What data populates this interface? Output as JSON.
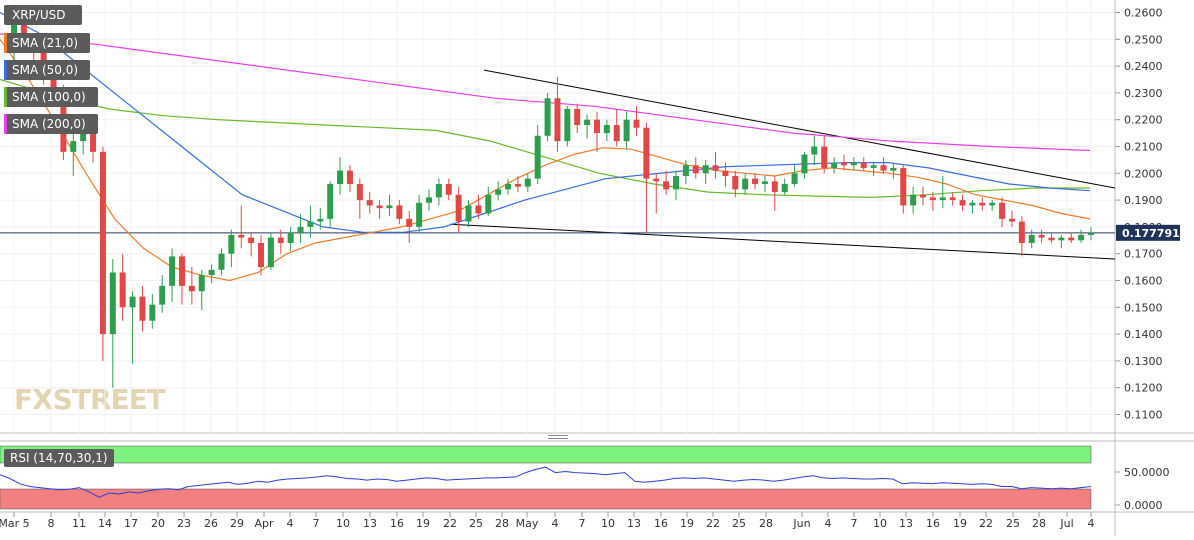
{
  "chart_data": {
    "type": "candlestick",
    "symbol": "XRP/USD",
    "indicators": [
      {
        "name": "SMA (21,0)",
        "color": "#ef7b2b"
      },
      {
        "name": "SMA (50,0)",
        "color": "#3a6fd8"
      },
      {
        "name": "SMA (100,0)",
        "color": "#6ab82b"
      },
      {
        "name": "SMA (200,0)",
        "color": "#e83ff0"
      }
    ],
    "price_axis": {
      "ticks": [
        "0.2600",
        "0.2500",
        "0.2400",
        "0.2300",
        "0.2200",
        "0.2100",
        "0.2000",
        "0.1900",
        "0.1800",
        "0.1700",
        "0.1600",
        "0.1500",
        "0.1400",
        "0.1300",
        "0.1200",
        "0.1100"
      ],
      "range": [
        0.105,
        0.264
      ]
    },
    "current_price": "0.177791",
    "date_labels": [
      "Mar 5",
      "8",
      "11",
      "14",
      "17",
      "20",
      "23",
      "26",
      "29",
      "Apr",
      "4",
      "7",
      "10",
      "13",
      "16",
      "19",
      "22",
      "25",
      "28",
      "May",
      "4",
      "7",
      "10",
      "13",
      "16",
      "19",
      "22",
      "25",
      "28",
      "Jun",
      "4",
      "7",
      "10",
      "13",
      "16",
      "19",
      "22",
      "25",
      "28",
      "Jul",
      "4"
    ],
    "candles": [
      [
        0.25,
        0.258,
        0.24,
        0.256
      ],
      [
        0.256,
        0.26,
        0.245,
        0.248
      ],
      [
        0.248,
        0.252,
        0.238,
        0.245
      ],
      [
        0.245,
        0.248,
        0.233,
        0.235
      ],
      [
        0.235,
        0.24,
        0.225,
        0.23
      ],
      [
        0.23,
        0.233,
        0.205,
        0.208
      ],
      [
        0.208,
        0.215,
        0.199,
        0.212
      ],
      [
        0.212,
        0.217,
        0.207,
        0.215
      ],
      [
        0.215,
        0.217,
        0.204,
        0.208
      ],
      [
        0.208,
        0.21,
        0.13,
        0.14
      ],
      [
        0.14,
        0.168,
        0.12,
        0.163
      ],
      [
        0.163,
        0.17,
        0.145,
        0.15
      ],
      [
        0.15,
        0.156,
        0.129,
        0.154
      ],
      [
        0.154,
        0.158,
        0.141,
        0.145
      ],
      [
        0.145,
        0.155,
        0.142,
        0.151
      ],
      [
        0.151,
        0.162,
        0.148,
        0.158
      ],
      [
        0.158,
        0.172,
        0.152,
        0.169
      ],
      [
        0.169,
        0.17,
        0.151,
        0.158
      ],
      [
        0.158,
        0.165,
        0.151,
        0.156
      ],
      [
        0.156,
        0.164,
        0.149,
        0.162
      ],
      [
        0.162,
        0.166,
        0.159,
        0.164
      ],
      [
        0.164,
        0.172,
        0.162,
        0.17
      ],
      [
        0.17,
        0.179,
        0.165,
        0.177
      ],
      [
        0.177,
        0.188,
        0.172,
        0.176
      ],
      [
        0.176,
        0.178,
        0.169,
        0.174
      ],
      [
        0.174,
        0.177,
        0.162,
        0.165
      ],
      [
        0.165,
        0.178,
        0.164,
        0.176
      ],
      [
        0.176,
        0.179,
        0.17,
        0.174
      ],
      [
        0.174,
        0.18,
        0.171,
        0.178
      ],
      [
        0.178,
        0.185,
        0.174,
        0.18
      ],
      [
        0.18,
        0.188,
        0.176,
        0.182
      ],
      [
        0.182,
        0.187,
        0.179,
        0.183
      ],
      [
        0.183,
        0.197,
        0.18,
        0.196
      ],
      [
        0.196,
        0.206,
        0.192,
        0.201
      ],
      [
        0.201,
        0.203,
        0.193,
        0.196
      ],
      [
        0.196,
        0.198,
        0.183,
        0.19
      ],
      [
        0.19,
        0.193,
        0.185,
        0.188
      ],
      [
        0.188,
        0.19,
        0.183,
        0.187
      ],
      [
        0.187,
        0.192,
        0.184,
        0.188
      ],
      [
        0.188,
        0.19,
        0.181,
        0.183
      ],
      [
        0.183,
        0.186,
        0.174,
        0.18
      ],
      [
        0.18,
        0.192,
        0.178,
        0.189
      ],
      [
        0.189,
        0.194,
        0.186,
        0.191
      ],
      [
        0.191,
        0.198,
        0.188,
        0.196
      ],
      [
        0.196,
        0.198,
        0.19,
        0.192
      ],
      [
        0.192,
        0.195,
        0.178,
        0.182
      ],
      [
        0.182,
        0.19,
        0.18,
        0.188
      ],
      [
        0.188,
        0.192,
        0.183,
        0.185
      ],
      [
        0.185,
        0.195,
        0.184,
        0.192
      ],
      [
        0.192,
        0.197,
        0.19,
        0.194
      ],
      [
        0.194,
        0.198,
        0.192,
        0.196
      ],
      [
        0.196,
        0.199,
        0.193,
        0.195
      ],
      [
        0.195,
        0.2,
        0.193,
        0.198
      ],
      [
        0.198,
        0.218,
        0.196,
        0.214
      ],
      [
        0.214,
        0.23,
        0.212,
        0.228
      ],
      [
        0.228,
        0.236,
        0.208,
        0.212
      ],
      [
        0.212,
        0.225,
        0.21,
        0.224
      ],
      [
        0.224,
        0.226,
        0.215,
        0.218
      ],
      [
        0.218,
        0.222,
        0.213,
        0.22
      ],
      [
        0.22,
        0.223,
        0.208,
        0.215
      ],
      [
        0.215,
        0.22,
        0.212,
        0.218
      ],
      [
        0.218,
        0.224,
        0.21,
        0.212
      ],
      [
        0.212,
        0.223,
        0.209,
        0.22
      ],
      [
        0.22,
        0.225,
        0.214,
        0.217
      ],
      [
        0.217,
        0.219,
        0.178,
        0.198
      ],
      [
        0.198,
        0.2,
        0.185,
        0.197
      ],
      [
        0.197,
        0.201,
        0.192,
        0.194
      ],
      [
        0.194,
        0.201,
        0.19,
        0.199
      ],
      [
        0.199,
        0.205,
        0.196,
        0.203
      ],
      [
        0.203,
        0.206,
        0.198,
        0.2
      ],
      [
        0.2,
        0.205,
        0.196,
        0.203
      ],
      [
        0.203,
        0.208,
        0.198,
        0.201
      ],
      [
        0.201,
        0.204,
        0.195,
        0.199
      ],
      [
        0.199,
        0.201,
        0.191,
        0.194
      ],
      [
        0.194,
        0.2,
        0.192,
        0.198
      ],
      [
        0.198,
        0.2,
        0.194,
        0.196
      ],
      [
        0.196,
        0.199,
        0.193,
        0.197
      ],
      [
        0.197,
        0.199,
        0.186,
        0.193
      ],
      [
        0.193,
        0.198,
        0.192,
        0.196
      ],
      [
        0.196,
        0.203,
        0.195,
        0.2
      ],
      [
        0.2,
        0.208,
        0.198,
        0.207
      ],
      [
        0.207,
        0.214,
        0.203,
        0.21
      ],
      [
        0.21,
        0.214,
        0.2,
        0.202
      ],
      [
        0.202,
        0.206,
        0.2,
        0.204
      ],
      [
        0.204,
        0.207,
        0.201,
        0.203
      ],
      [
        0.203,
        0.206,
        0.201,
        0.204
      ],
      [
        0.204,
        0.206,
        0.201,
        0.202
      ],
      [
        0.202,
        0.204,
        0.199,
        0.203
      ],
      [
        0.203,
        0.206,
        0.2,
        0.201
      ],
      [
        0.201,
        0.204,
        0.198,
        0.202
      ],
      [
        0.202,
        0.203,
        0.185,
        0.188
      ],
      [
        0.188,
        0.195,
        0.185,
        0.192
      ],
      [
        0.192,
        0.195,
        0.188,
        0.191
      ],
      [
        0.191,
        0.193,
        0.186,
        0.19
      ],
      [
        0.19,
        0.199,
        0.187,
        0.191
      ],
      [
        0.191,
        0.193,
        0.188,
        0.19
      ],
      [
        0.19,
        0.192,
        0.186,
        0.188
      ],
      [
        0.188,
        0.19,
        0.185,
        0.189
      ],
      [
        0.189,
        0.191,
        0.186,
        0.188
      ],
      [
        0.188,
        0.19,
        0.186,
        0.189
      ],
      [
        0.189,
        0.191,
        0.18,
        0.183
      ],
      [
        0.183,
        0.186,
        0.18,
        0.182
      ],
      [
        0.182,
        0.184,
        0.169,
        0.174
      ],
      [
        0.174,
        0.179,
        0.172,
        0.177
      ],
      [
        0.177,
        0.179,
        0.174,
        0.176
      ],
      [
        0.176,
        0.178,
        0.174,
        0.175
      ],
      [
        0.175,
        0.177,
        0.172,
        0.176
      ],
      [
        0.176,
        0.178,
        0.174,
        0.175
      ],
      [
        0.175,
        0.179,
        0.174,
        0.177
      ],
      [
        0.177,
        0.18,
        0.175,
        0.1778
      ]
    ],
    "sma21": [
      0.25,
      0.235,
      0.218,
      0.2,
      0.183,
      0.172,
      0.165,
      0.162,
      0.16,
      0.163,
      0.17,
      0.174,
      0.176,
      0.178,
      0.18,
      0.183,
      0.186,
      0.192,
      0.198,
      0.203,
      0.207,
      0.2095,
      0.209,
      0.206,
      0.203,
      0.201,
      0.2,
      0.199,
      0.201,
      0.202,
      0.201,
      0.2,
      0.1985,
      0.196,
      0.192,
      0.19,
      0.188,
      0.185,
      0.183
    ],
    "sma50": [
      0.26,
      0.252,
      0.24,
      0.228,
      0.216,
      0.204,
      0.192,
      0.186,
      0.18,
      0.178,
      0.178,
      0.18,
      0.185,
      0.19,
      0.194,
      0.198,
      0.1995,
      0.201,
      0.2025,
      0.203,
      0.2035,
      0.204,
      0.204,
      0.202,
      0.199,
      0.196,
      0.1945,
      0.1935
    ],
    "sma100": [
      0.235,
      0.229,
      0.224,
      0.2215,
      0.22,
      0.219,
      0.218,
      0.217,
      0.216,
      0.212,
      0.206,
      0.2,
      0.196,
      0.193,
      0.192,
      0.1915,
      0.191,
      0.192,
      0.1935,
      0.1945,
      0.1945
    ],
    "sma200": [
      0.252,
      0.248,
      0.243,
      0.238,
      0.233,
      0.228,
      0.225,
      0.22,
      0.215,
      0.212,
      0.21,
      0.2085
    ],
    "trendlines": [
      {
        "from": [
          0.2385
        ],
        "to": [
          0.1945
        ]
      },
      {
        "from": [
          0.181
        ],
        "to": [
          0.168
        ]
      }
    ],
    "rsi": {
      "label": "RSI (14,70,30,1)",
      "ticks": [
        "50.0000",
        "0.0000"
      ],
      "overbought": 70,
      "oversold": 30,
      "values": [
        62,
        55,
        45,
        40,
        38,
        36,
        34,
        35,
        38,
        30,
        20,
        28,
        26,
        30,
        28,
        32,
        35,
        36,
        34,
        40,
        42,
        44,
        46,
        48,
        44,
        46,
        50,
        48,
        52,
        54,
        55,
        56,
        58,
        60,
        58,
        55,
        54,
        52,
        54,
        53,
        50,
        52,
        54,
        56,
        55,
        52,
        53,
        54,
        55,
        56,
        56,
        57,
        58,
        66,
        72,
        76,
        66,
        68,
        66,
        65,
        64,
        62,
        64,
        66,
        50,
        48,
        50,
        52,
        55,
        56,
        55,
        56,
        54,
        52,
        50,
        52,
        53,
        52,
        50,
        52,
        55,
        58,
        60,
        56,
        55,
        56,
        55,
        54,
        54,
        55,
        54,
        45,
        47,
        46,
        45,
        47,
        46,
        45,
        44,
        45,
        44,
        40,
        40,
        36,
        38,
        37,
        36,
        37,
        36,
        38,
        40
      ]
    },
    "watermark": "FXSTREET"
  }
}
